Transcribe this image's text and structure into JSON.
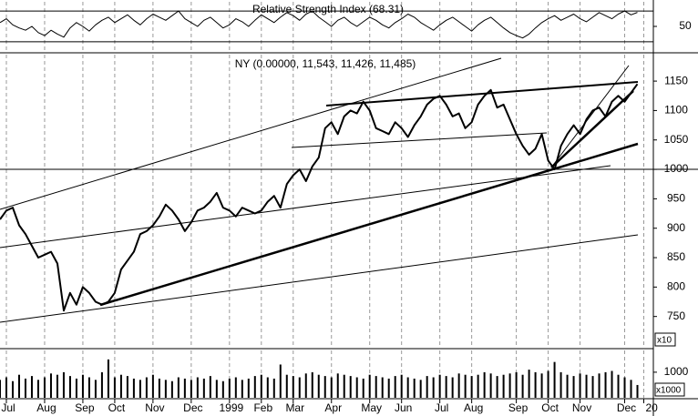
{
  "chart_data": [
    {
      "type": "line",
      "title": "Relative Strength Index (68.31)",
      "series": [
        {
          "color": "#000000",
          "values": [
            55,
            60,
            52,
            48,
            45,
            50,
            42,
            38,
            45,
            40,
            36,
            48,
            55,
            50,
            44,
            52,
            58,
            62,
            55,
            60,
            65,
            58,
            52,
            60,
            66,
            62,
            58,
            64,
            70,
            60,
            55,
            50,
            58,
            62,
            55,
            48,
            52,
            60,
            56,
            50,
            58,
            65,
            60,
            55,
            62,
            68,
            64,
            58,
            66,
            70,
            62,
            56,
            50,
            58,
            62,
            55,
            50,
            56,
            62,
            58,
            52,
            48,
            55,
            60,
            66,
            62,
            55,
            50,
            45,
            52,
            58,
            62,
            56,
            50,
            44,
            52,
            58,
            62,
            55,
            48,
            42,
            38,
            35,
            40,
            48,
            55,
            60,
            64,
            58,
            62,
            66,
            60,
            56,
            62,
            68,
            64,
            60,
            66,
            70,
            65,
            68.31
          ]
        }
      ],
      "xlim": [
        0,
        102.5
      ],
      "ylim": [
        18,
        82
      ],
      "yticks": [
        50
      ],
      "reference_lines": [
        30,
        70
      ]
    },
    {
      "type": "line",
      "title": "NY (0.00000, 11,543, 11,426, 11,485)",
      "series": [
        {
          "color": "#000000",
          "values": [
            915,
            930,
            935,
            905,
            890,
            870,
            850,
            855,
            860,
            840,
            760,
            790,
            770,
            800,
            790,
            775,
            770,
            775,
            790,
            830,
            845,
            860,
            890,
            895,
            905,
            920,
            940,
            930,
            915,
            895,
            910,
            930,
            935,
            945,
            960,
            935,
            930,
            920,
            935,
            930,
            925,
            930,
            945,
            955,
            935,
            975,
            990,
            1000,
            980,
            1005,
            1020,
            1070,
            1080,
            1060,
            1090,
            1100,
            1095,
            1115,
            1100,
            1070,
            1065,
            1060,
            1080,
            1070,
            1055,
            1075,
            1090,
            1110,
            1120,
            1125,
            1110,
            1090,
            1095,
            1070,
            1080,
            1110,
            1125,
            1135,
            1105,
            1110,
            1085,
            1060,
            1040,
            1025,
            1035,
            1060,
            1015,
            1000,
            1040,
            1060,
            1075,
            1060,
            1085,
            1100,
            1105,
            1090,
            1115,
            1125,
            1115,
            1130,
            1145
          ]
        }
      ],
      "xlim": [
        0,
        102.5
      ],
      "ylim": [
        700,
        1195
      ],
      "yticks": [
        750,
        800,
        850,
        900,
        950,
        1000,
        1050,
        1100,
        1150
      ],
      "reference_lines": [
        1000
      ],
      "scale_label": "x10"
    },
    {
      "type": "bar",
      "series": [
        {
          "color": "#000000",
          "values": [
            700,
            800,
            650,
            900,
            750,
            850,
            700,
            800,
            950,
            900,
            1000,
            850,
            750,
            900,
            800,
            700,
            1000,
            1500,
            800,
            900,
            850,
            750,
            700,
            800,
            900,
            750,
            700,
            650,
            800,
            750,
            700,
            800,
            750,
            850,
            700,
            650,
            750,
            800,
            700,
            750,
            850,
            900,
            800,
            750,
            1300,
            900,
            850,
            800,
            950,
            1000,
            900,
            850,
            800,
            950,
            900,
            850,
            800,
            750,
            900,
            850,
            800,
            750,
            850,
            900,
            800,
            750,
            700,
            850,
            800,
            900,
            850,
            800,
            950,
            900,
            850,
            900,
            1000,
            950,
            850,
            900,
            950,
            1000,
            900,
            1100,
            1000,
            950,
            1050,
            1400,
            1000,
            900,
            850,
            950,
            900,
            850,
            950,
            1000,
            1050,
            900,
            800,
            700,
            500
          ]
        }
      ],
      "xlim": [
        0,
        102.5
      ],
      "ylim": [
        0,
        1850
      ],
      "yticks": [
        1000
      ],
      "scale_label": "x1000",
      "grid": true,
      "xticks": [
        {
          "value": 1,
          "label": "Jul"
        },
        {
          "value": 7,
          "label": "Aug"
        },
        {
          "value": 13,
          "label": "Sep"
        },
        {
          "value": 18,
          "label": "Oct"
        },
        {
          "value": 24,
          "label": "Nov"
        },
        {
          "value": 30,
          "label": "Dec"
        },
        {
          "value": 36,
          "label": "1999"
        },
        {
          "value": 41,
          "label": "Feb"
        },
        {
          "value": 46,
          "label": "Mar"
        },
        {
          "value": 52,
          "label": "Apr"
        },
        {
          "value": 58,
          "label": "May"
        },
        {
          "value": 63,
          "label": "Jun"
        },
        {
          "value": 69,
          "label": "Jul"
        },
        {
          "value": 74,
          "label": "Aug"
        },
        {
          "value": 81,
          "label": "Sep"
        },
        {
          "value": 86,
          "label": "Oct"
        },
        {
          "value": 91,
          "label": "Nov"
        },
        {
          "value": 98,
          "label": "Dec"
        },
        {
          "value": 101,
          "label": "20"
        }
      ]
    }
  ]
}
